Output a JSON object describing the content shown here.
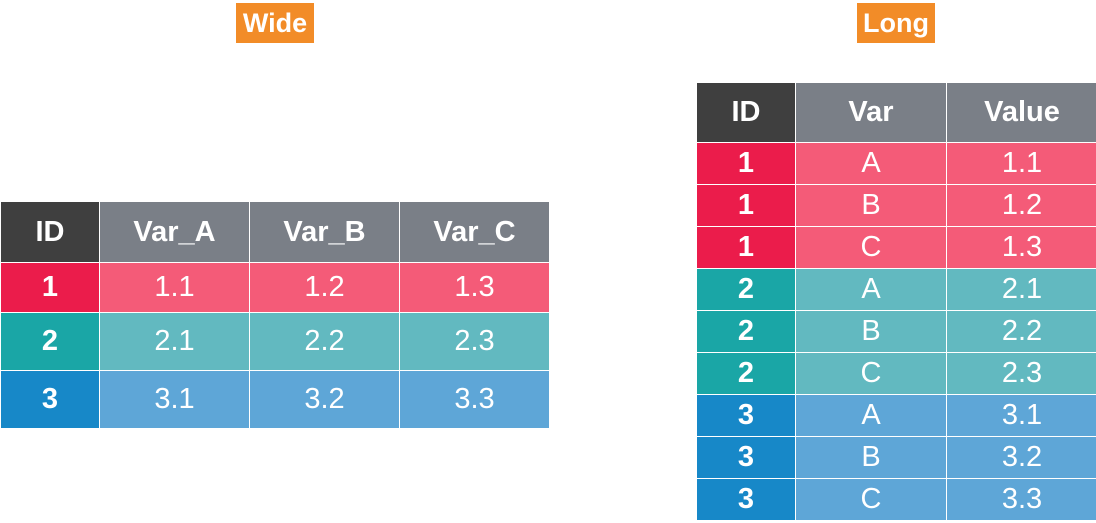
{
  "wide": {
    "label": "Wide",
    "headers": [
      "ID",
      "Var_A",
      "Var_B",
      "Var_C"
    ],
    "rows": [
      {
        "id": "1",
        "values": [
          "1.1",
          "1.2",
          "1.3"
        ]
      },
      {
        "id": "2",
        "values": [
          "2.1",
          "2.2",
          "2.3"
        ]
      },
      {
        "id": "3",
        "values": [
          "3.1",
          "3.2",
          "3.3"
        ]
      }
    ]
  },
  "long": {
    "label": "Long",
    "headers": [
      "ID",
      "Var",
      "Value"
    ],
    "rows": [
      {
        "id": "1",
        "var": "A",
        "value": "1.1"
      },
      {
        "id": "1",
        "var": "B",
        "value": "1.2"
      },
      {
        "id": "1",
        "var": "C",
        "value": "1.3"
      },
      {
        "id": "2",
        "var": "A",
        "value": "2.1"
      },
      {
        "id": "2",
        "var": "B",
        "value": "2.2"
      },
      {
        "id": "2",
        "var": "C",
        "value": "2.3"
      },
      {
        "id": "3",
        "var": "A",
        "value": "3.1"
      },
      {
        "id": "3",
        "var": "B",
        "value": "3.2"
      },
      {
        "id": "3",
        "var": "C",
        "value": "3.3"
      }
    ]
  },
  "colors": {
    "label_bg": "#F28C28",
    "header_id_bg": "#3F3F3F",
    "header_bg": "#7A7F87",
    "id1": "#EB1C4B",
    "val1": "#F45B78",
    "id2": "#1AA6A6",
    "val2": "#62B9C0",
    "id3": "#1788C8",
    "val3": "#5EA6D7"
  }
}
